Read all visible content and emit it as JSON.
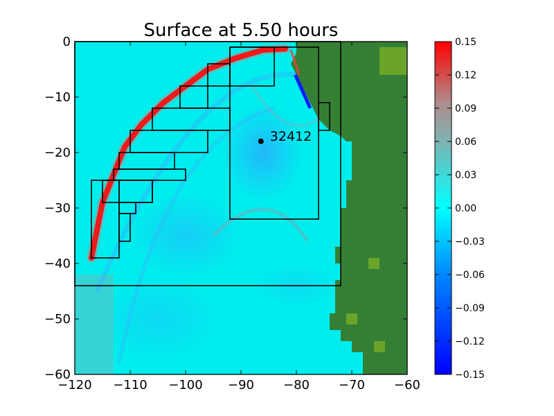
{
  "chart_data": {
    "type": "heatmap",
    "title": "Surface at 5.50 hours",
    "xlabel": "",
    "ylabel": "",
    "xlim": [
      -120,
      -60
    ],
    "ylim": [
      -60,
      0
    ],
    "xticks": [
      -120,
      -110,
      -100,
      -90,
      -80,
      -70,
      -60
    ],
    "yticks": [
      0,
      -10,
      -20,
      -30,
      -40,
      -50,
      -60
    ],
    "x_tick_labels": [
      "−120",
      "−110",
      "−100",
      "−90",
      "−80",
      "−70",
      "−60"
    ],
    "y_tick_labels": [
      "0",
      "−10",
      "−20",
      "−30",
      "−40",
      "−50",
      "−60"
    ],
    "colorbar": {
      "range": [
        -0.15,
        0.15
      ],
      "ticks": [
        0.15,
        0.12,
        0.09,
        0.06,
        0.03,
        0.0,
        -0.03,
        -0.06,
        -0.09,
        -0.12,
        -0.15
      ],
      "tick_labels": [
        "0.15",
        "0.12",
        "0.09",
        "0.06",
        "0.03",
        "0.00",
        "−0.03",
        "−0.06",
        "−0.09",
        "−0.12",
        "−0.15"
      ],
      "colors": {
        "low": "#0000ff",
        "mid_low": "#00a0ff",
        "zero": "#00ffff",
        "mid_high": "#a0a0a0",
        "high": "#ff0000"
      }
    },
    "colors": {
      "ocean": "#00eded",
      "land": "#357f35",
      "land_highlight": "#6aa52a",
      "wave_crest": "#ee1a1a",
      "trough": "#33b1ff"
    },
    "refinement_boxes": [
      {
        "x1": -120,
        "x2": -72,
        "y1": -44,
        "y2": 0
      },
      {
        "x1": -92,
        "x2": -76,
        "y1": -32,
        "y2": -1
      },
      {
        "x1": -76,
        "x2": -74,
        "y1": -16,
        "y2": -11
      },
      {
        "x1": -92,
        "x2": -84,
        "y1": -8,
        "y2": -1
      },
      {
        "x1": -96,
        "x2": -92,
        "y1": -8,
        "y2": -4
      },
      {
        "x1": -101,
        "x2": -96,
        "y1": -12,
        "y2": -8
      },
      {
        "x1": -106,
        "x2": -92,
        "y1": -16,
        "y2": -12
      },
      {
        "x1": -110,
        "x2": -96,
        "y1": -20,
        "y2": -16
      },
      {
        "x1": -112,
        "x2": -102,
        "y1": -23,
        "y2": -20
      },
      {
        "x1": -113,
        "x2": -100,
        "y1": -25,
        "y2": -23
      },
      {
        "x1": -115,
        "x2": -106,
        "y1": -29,
        "y2": -25
      },
      {
        "x1": -117,
        "x2": -112,
        "y1": -39,
        "y2": -25
      },
      {
        "x1": -112,
        "x2": -106,
        "y1": -29,
        "y2": -25
      },
      {
        "x1": -112,
        "x2": -110,
        "y1": -36,
        "y2": -31
      },
      {
        "x1": -112,
        "x2": -109,
        "y1": -31,
        "y2": -29
      }
    ],
    "wave_front": [
      [
        -117,
        -39
      ],
      [
        -116,
        -34
      ],
      [
        -115,
        -29
      ],
      [
        -113,
        -24
      ],
      [
        -111,
        -19
      ],
      [
        -108,
        -15
      ],
      [
        -104,
        -11
      ],
      [
        -100,
        -8
      ],
      [
        -96,
        -5
      ],
      [
        -91,
        -3
      ],
      [
        -86,
        -1.5
      ],
      [
        -82,
        -1.3
      ]
    ],
    "gauges": [
      {
        "label": "32412",
        "x": -86.4,
        "y": -17.97
      }
    ]
  }
}
